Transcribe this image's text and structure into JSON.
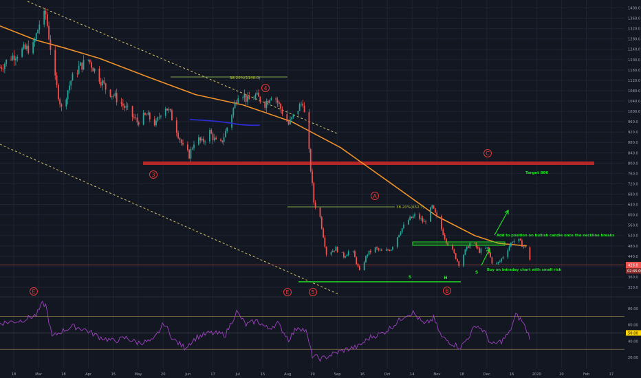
{
  "colors": {
    "background": "#131722",
    "grid": "#1f2433",
    "candle_up": "#26a69a",
    "candle_down": "#ef5350",
    "moving_average": "#f0922a",
    "channel": "#d8c66a",
    "resistance_zone": "#c62828",
    "wave_label": "#e53935",
    "annotation": "#22e022",
    "rsi_line": "#a142c4",
    "rsi_level": "#c8a45a",
    "axis_text": "#9aa3b2",
    "price_tag": "#ef5350",
    "mid_tag": "#ffd600"
  },
  "chart_data": [
    {
      "type": "candlestick",
      "title": "",
      "x_ticks": [
        "18",
        "Mar",
        "18",
        "Apr",
        "15",
        "May",
        "20",
        "Jun",
        "17",
        "Jul",
        "15",
        "Aug",
        "19",
        "Sep",
        "16",
        "Oct",
        "14",
        "Nov",
        "18",
        "Dec",
        "16",
        "2020",
        "20",
        "Feb",
        "17"
      ],
      "y_ticks": [
        "1400.0",
        "1360.0",
        "1320.0",
        "1280.0",
        "1240.0",
        "1200.0",
        "1160.0",
        "1120.0",
        "1080.0",
        "1040.0",
        "1000.0",
        "960.0",
        "920.0",
        "880.0",
        "840.0",
        "800.0",
        "760.0",
        "720.0",
        "680.0",
        "640.0",
        "600.0",
        "560.0",
        "520.0",
        "480.0",
        "440.0",
        "400.0",
        "360.0",
        "320.0"
      ],
      "ylim": [
        312,
        1410
      ],
      "price_path": [
        {
          "x": "2019-01-28",
          "y": 1170
        },
        {
          "x": "2019-02-04",
          "y": 1210
        },
        {
          "x": "2019-02-11",
          "y": 1235
        },
        {
          "x": "2019-02-18",
          "y": 1250
        },
        {
          "x": "2019-02-22",
          "y": 1340
        },
        {
          "x": "2019-02-26",
          "y": 1375
        },
        {
          "x": "2019-03-04",
          "y": 1120
        },
        {
          "x": "2019-03-08",
          "y": 1010
        },
        {
          "x": "2019-03-14",
          "y": 1120
        },
        {
          "x": "2019-03-19",
          "y": 1170
        },
        {
          "x": "2019-03-25",
          "y": 1200
        },
        {
          "x": "2019-04-01",
          "y": 1130
        },
        {
          "x": "2019-04-05",
          "y": 1090
        },
        {
          "x": "2019-04-12",
          "y": 1050
        },
        {
          "x": "2019-04-18",
          "y": 1010
        },
        {
          "x": "2019-04-25",
          "y": 960
        },
        {
          "x": "2019-05-01",
          "y": 985
        },
        {
          "x": "2019-05-07",
          "y": 950
        },
        {
          "x": "2019-05-12",
          "y": 1030
        },
        {
          "x": "2019-05-16",
          "y": 990
        },
        {
          "x": "2019-05-20",
          "y": 930
        },
        {
          "x": "2019-05-24",
          "y": 860
        },
        {
          "x": "2019-05-28",
          "y": 830
        },
        {
          "x": "2019-06-01",
          "y": 900
        },
        {
          "x": "2019-06-05",
          "y": 880
        },
        {
          "x": "2019-06-10",
          "y": 920
        },
        {
          "x": "2019-06-16",
          "y": 860
        },
        {
          "x": "2019-06-20",
          "y": 920
        },
        {
          "x": "2019-06-25",
          "y": 1010
        },
        {
          "x": "2019-06-29",
          "y": 1090
        },
        {
          "x": "2019-07-04",
          "y": 1040
        },
        {
          "x": "2019-07-09",
          "y": 1060
        },
        {
          "x": "2019-07-15",
          "y": 1030
        },
        {
          "x": "2019-07-20",
          "y": 1075
        },
        {
          "x": "2019-07-25",
          "y": 1010
        },
        {
          "x": "2019-07-30",
          "y": 950
        },
        {
          "x": "2019-08-04",
          "y": 1000
        },
        {
          "x": "2019-08-08",
          "y": 1040
        },
        {
          "x": "2019-08-12",
          "y": 840
        },
        {
          "x": "2019-08-15",
          "y": 650
        },
        {
          "x": "2019-08-19",
          "y": 590
        },
        {
          "x": "2019-08-23",
          "y": 450
        },
        {
          "x": "2019-08-29",
          "y": 470
        },
        {
          "x": "2019-09-03",
          "y": 440
        },
        {
          "x": "2019-09-08",
          "y": 470
        },
        {
          "x": "2019-09-13",
          "y": 380
        },
        {
          "x": "2019-09-18",
          "y": 450
        },
        {
          "x": "2019-09-23",
          "y": 470
        },
        {
          "x": "2019-09-28",
          "y": 455
        },
        {
          "x": "2019-10-03",
          "y": 470
        },
        {
          "x": "2019-10-09",
          "y": 540
        },
        {
          "x": "2019-10-14",
          "y": 580
        },
        {
          "x": "2019-10-19",
          "y": 600
        },
        {
          "x": "2019-10-24",
          "y": 570
        },
        {
          "x": "2019-10-29",
          "y": 630
        },
        {
          "x": "2019-11-03",
          "y": 560
        },
        {
          "x": "2019-11-07",
          "y": 500
        },
        {
          "x": "2019-11-11",
          "y": 460
        },
        {
          "x": "2019-11-15",
          "y": 410
        },
        {
          "x": "2019-11-19",
          "y": 460
        },
        {
          "x": "2019-11-23",
          "y": 500
        },
        {
          "x": "2019-11-28",
          "y": 460
        },
        {
          "x": "2019-12-03",
          "y": 470
        },
        {
          "x": "2019-12-07",
          "y": 400
        },
        {
          "x": "2019-12-11",
          "y": 420
        },
        {
          "x": "2019-12-15",
          "y": 460
        },
        {
          "x": "2019-12-19",
          "y": 500
        },
        {
          "x": "2019-12-23",
          "y": 500
        },
        {
          "x": "2019-12-27",
          "y": 470
        },
        {
          "x": "2019-12-30",
          "y": 430
        }
      ],
      "moving_average": [
        {
          "x": "2019-01-28",
          "y": 1330
        },
        {
          "x": "2019-02-20",
          "y": 1275
        },
        {
          "x": "2019-03-10",
          "y": 1245
        },
        {
          "x": "2019-04-01",
          "y": 1205
        },
        {
          "x": "2019-05-01",
          "y": 1135
        },
        {
          "x": "2019-06-01",
          "y": 1065
        },
        {
          "x": "2019-07-01",
          "y": 1025
        },
        {
          "x": "2019-08-01",
          "y": 960
        },
        {
          "x": "2019-09-01",
          "y": 860
        },
        {
          "x": "2019-10-01",
          "y": 730
        },
        {
          "x": "2019-11-01",
          "y": 595
        },
        {
          "x": "2019-11-25",
          "y": 520
        },
        {
          "x": "2019-12-10",
          "y": 490
        },
        {
          "x": "2019-12-28",
          "y": 480
        }
      ],
      "last_price": {
        "value": "426.8",
        "countdown": "02:45:00"
      },
      "overlays": {
        "fib_upper": "38.20%(1140.0)",
        "fib_lower": "38.20%(652.7)",
        "target": "Target 806",
        "wave_labels": [
          "3",
          "4",
          "5",
          "A",
          "B",
          "C",
          "E",
          "E"
        ],
        "neckline_note": "Add to position on bullish candle once the neckline breaks",
        "entry_note": "Buy on intraday chart with small risk",
        "hs_labels": [
          "S",
          "H",
          "S"
        ]
      }
    },
    {
      "type": "line",
      "title": "",
      "y_ticks": [
        "80.00",
        "60.00",
        "50.00",
        "40.00",
        "20.00"
      ],
      "ylim": [
        10,
        100
      ],
      "levels": [
        70,
        30
      ],
      "midline": 50,
      "mid_tag": "50.00",
      "rsi": [
        {
          "x": "2019-01-28",
          "y": 62
        },
        {
          "x": "2019-02-10",
          "y": 65
        },
        {
          "x": "2019-02-20",
          "y": 72
        },
        {
          "x": "2019-02-24",
          "y": 86
        },
        {
          "x": "2019-02-26",
          "y": 84
        },
        {
          "x": "2019-03-02",
          "y": 45
        },
        {
          "x": "2019-03-08",
          "y": 52
        },
        {
          "x": "2019-03-15",
          "y": 58
        },
        {
          "x": "2019-03-22",
          "y": 55
        },
        {
          "x": "2019-04-01",
          "y": 45
        },
        {
          "x": "2019-04-10",
          "y": 40
        },
        {
          "x": "2019-04-18",
          "y": 44
        },
        {
          "x": "2019-04-25",
          "y": 38
        },
        {
          "x": "2019-05-05",
          "y": 40
        },
        {
          "x": "2019-05-12",
          "y": 62
        },
        {
          "x": "2019-05-18",
          "y": 42
        },
        {
          "x": "2019-05-25",
          "y": 32
        },
        {
          "x": "2019-06-02",
          "y": 45
        },
        {
          "x": "2019-06-10",
          "y": 50
        },
        {
          "x": "2019-06-20",
          "y": 48
        },
        {
          "x": "2019-06-27",
          "y": 76
        },
        {
          "x": "2019-07-03",
          "y": 60
        },
        {
          "x": "2019-07-10",
          "y": 65
        },
        {
          "x": "2019-07-17",
          "y": 55
        },
        {
          "x": "2019-07-23",
          "y": 62
        },
        {
          "x": "2019-07-30",
          "y": 42
        },
        {
          "x": "2019-08-05",
          "y": 58
        },
        {
          "x": "2019-08-10",
          "y": 52
        },
        {
          "x": "2019-08-14",
          "y": 22
        },
        {
          "x": "2019-08-20",
          "y": 18
        },
        {
          "x": "2019-08-28",
          "y": 25
        },
        {
          "x": "2019-09-05",
          "y": 30
        },
        {
          "x": "2019-09-12",
          "y": 33
        },
        {
          "x": "2019-09-20",
          "y": 45
        },
        {
          "x": "2019-09-28",
          "y": 50
        },
        {
          "x": "2019-10-05",
          "y": 60
        },
        {
          "x": "2019-10-12",
          "y": 72
        },
        {
          "x": "2019-10-17",
          "y": 75
        },
        {
          "x": "2019-10-24",
          "y": 60
        },
        {
          "x": "2019-10-30",
          "y": 68
        },
        {
          "x": "2019-11-04",
          "y": 45
        },
        {
          "x": "2019-11-10",
          "y": 38
        },
        {
          "x": "2019-11-16",
          "y": 32
        },
        {
          "x": "2019-11-21",
          "y": 45
        },
        {
          "x": "2019-11-26",
          "y": 60
        },
        {
          "x": "2019-12-01",
          "y": 52
        },
        {
          "x": "2019-12-06",
          "y": 35
        },
        {
          "x": "2019-12-12",
          "y": 40
        },
        {
          "x": "2019-12-17",
          "y": 50
        },
        {
          "x": "2019-12-21",
          "y": 72
        },
        {
          "x": "2019-12-25",
          "y": 65
        },
        {
          "x": "2019-12-30",
          "y": 45
        }
      ]
    }
  ]
}
